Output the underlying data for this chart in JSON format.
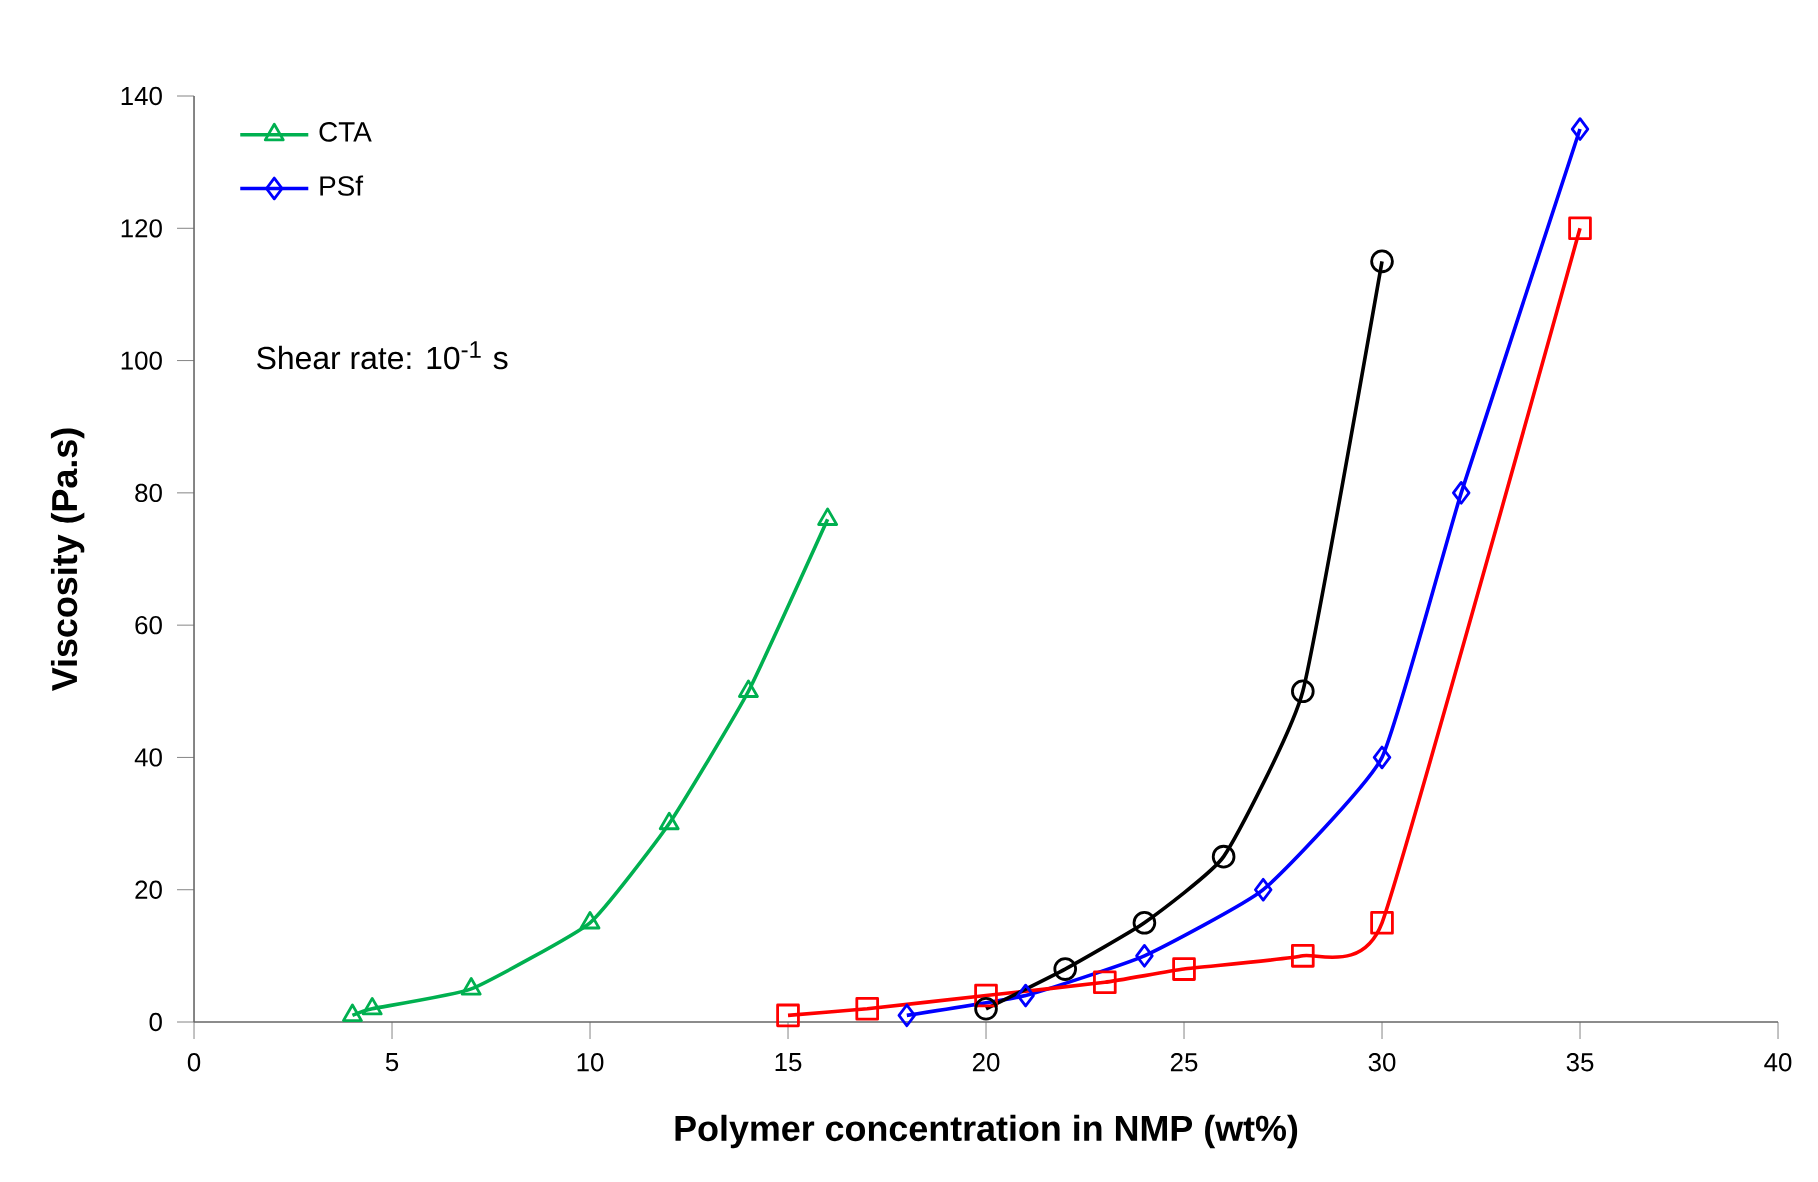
{
  "chart_data": {
    "type": "line",
    "xlabel": "Polymer concentration in NMP (wt%)",
    "ylabel": "Viscosity (Pa.s)",
    "xlim": [
      0,
      40
    ],
    "xticks": [
      0,
      5,
      10,
      15,
      20,
      25,
      30,
      35,
      40
    ],
    "ylim": [
      0,
      140
    ],
    "yticks": [
      0,
      20,
      40,
      60,
      80,
      100,
      120,
      140
    ],
    "grid": false,
    "legend": "top left",
    "line_style": "solid",
    "annotations": [
      "Shear rate: 10$^{-1}$ s"
    ],
    "series": [
      {
        "name": "CTA",
        "color": "#00b050",
        "marker": "triangle",
        "x": [
          4,
          4.5,
          7,
          10,
          12,
          14,
          16
        ],
        "values": [
          1,
          2,
          5,
          15,
          30,
          50,
          76
        ]
      },
      {
        "name": "PSf",
        "color": "#0000ff",
        "marker": "diamond",
        "x": [
          18,
          21,
          24,
          27,
          30,
          32,
          35
        ],
        "values": [
          1,
          4,
          10,
          20,
          40,
          80,
          135
        ]
      },
      {
        "color": "#ff0000",
        "marker": "square",
        "x": [
          15,
          17,
          20,
          23,
          25,
          28,
          30,
          35
        ],
        "values": [
          1,
          2,
          4,
          6,
          8,
          10,
          15,
          120
        ]
      },
      {
        "color": "#000000",
        "marker": "circle",
        "x": [
          20,
          22,
          24,
          26,
          28,
          30
        ],
        "values": [
          2,
          8,
          15,
          25,
          50,
          115
        ]
      }
    ]
  }
}
